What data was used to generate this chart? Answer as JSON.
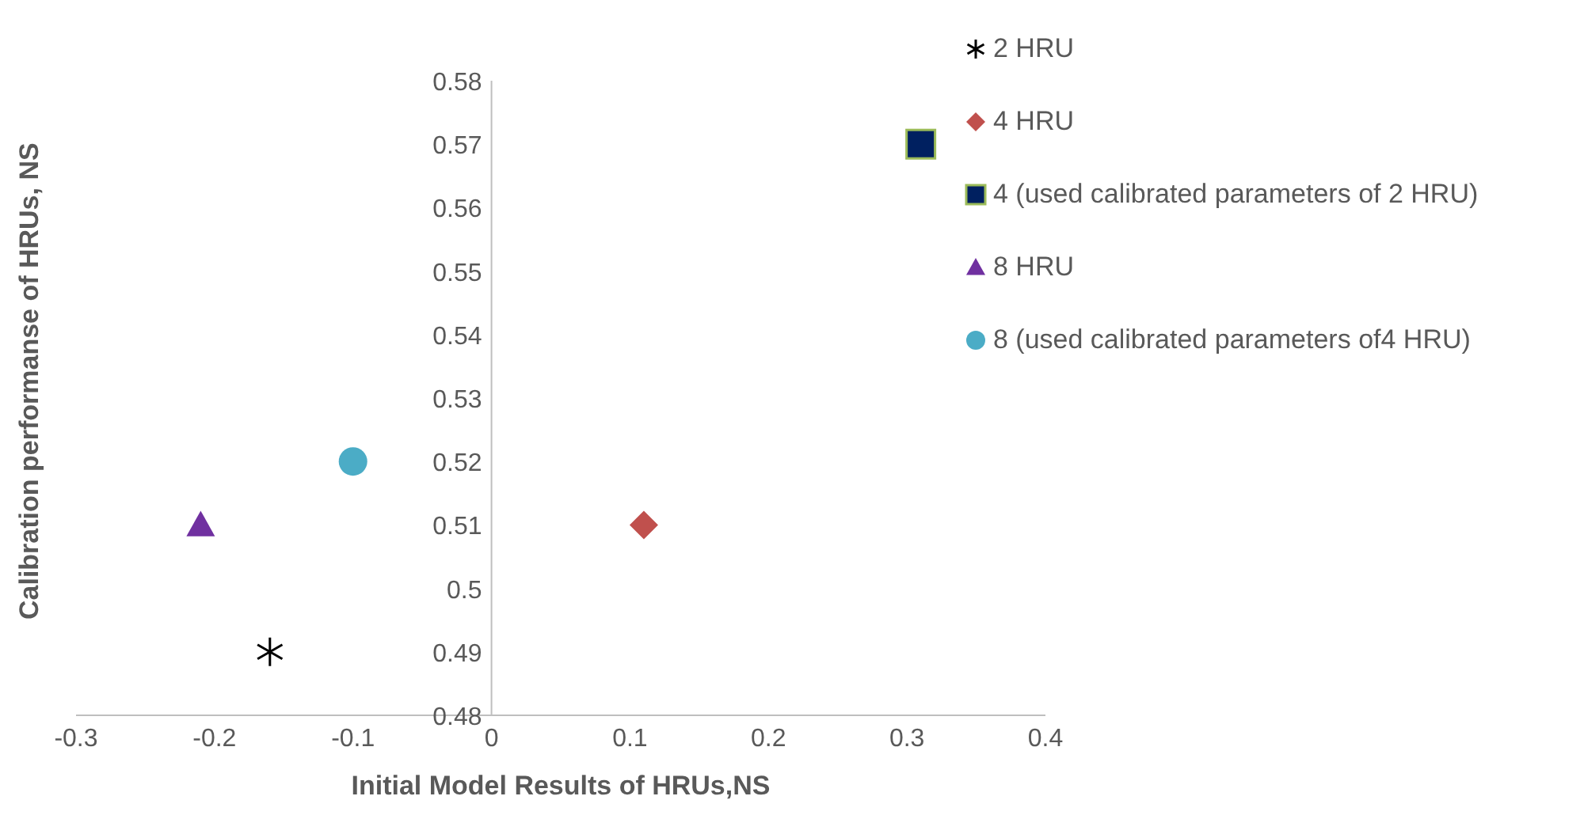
{
  "chart_data": {
    "type": "scatter",
    "xlabel": "Initial Model Results of HRUs,NS",
    "ylabel": "Calibration performanse of HRUs, NS",
    "xlim": [
      -0.3,
      0.4
    ],
    "xticks": [
      -0.3,
      -0.2,
      -0.1,
      0,
      0.1,
      0.2,
      0.3,
      0.4
    ],
    "ylim": [
      0.48,
      0.58
    ],
    "yticks": [
      0.48,
      0.49,
      0.5,
      0.51,
      0.52,
      0.53,
      0.54,
      0.55,
      0.56,
      0.57,
      0.58
    ],
    "legend": "top right",
    "series": [
      {
        "name": "2 HRU",
        "color": "#000000",
        "marker": "cross",
        "x": [
          -0.16
        ],
        "values": [
          0.49
        ]
      },
      {
        "name": "4 HRU",
        "color": "#c0504d",
        "marker": "diamond",
        "x": [
          0.11
        ],
        "values": [
          0.51
        ]
      },
      {
        "name": "4 (used calibrated parameters of 2 HRU)",
        "color": "#002060",
        "marker": "square",
        "x": [
          0.31
        ],
        "values": [
          0.57
        ]
      },
      {
        "name": "8 HRU",
        "color": "#7030a0",
        "marker": "triangle",
        "x": [
          -0.21
        ],
        "values": [
          0.51
        ]
      },
      {
        "name": "8 (used calibrated parameters of4 HRU)",
        "color": "#4bacc6",
        "marker": "circle",
        "x": [
          -0.1
        ],
        "values": [
          0.52
        ]
      }
    ]
  }
}
